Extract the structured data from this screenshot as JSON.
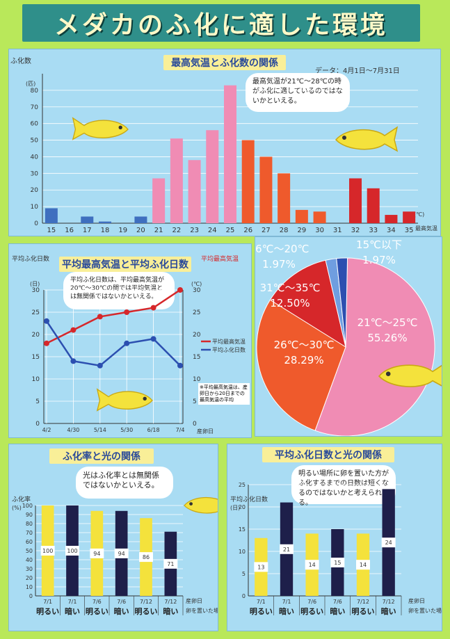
{
  "page_title": "メダカのふ化に適した環境",
  "colors": {
    "background": "#b9e85a",
    "panel": "#a9dcf3",
    "banner": "#2f8f8a",
    "pink": "#f08cb4",
    "red": "#d6272a",
    "orange": "#ef5a2c",
    "blue": "#3f6fbf",
    "yellow": "#f4e23c",
    "navy": "#1e1f4a"
  },
  "chart_data": [
    {
      "type": "bar",
      "title": "最高気温とふ化数の関係",
      "note": "データ：4月1日〜7月31日",
      "ylabel": "ふ化数",
      "yunit": "(匹)",
      "xunit": "(℃)",
      "xlabel": "最高気温",
      "ylim": [
        0,
        90
      ],
      "yticks": [
        0,
        10,
        20,
        30,
        40,
        50,
        60,
        70,
        80
      ],
      "categories": [
        "15",
        "16",
        "17",
        "18",
        "19",
        "20",
        "21",
        "22",
        "23",
        "24",
        "25",
        "26",
        "27",
        "28",
        "29",
        "30",
        "31",
        "32",
        "33",
        "34",
        "35"
      ],
      "values": [
        9,
        0,
        4,
        1,
        0,
        4,
        27,
        51,
        38,
        56,
        83,
        50,
        40,
        30,
        8,
        7,
        0,
        27,
        21,
        5,
        7
      ],
      "comment": "最高気温が21℃〜28℃の時がふ化に適しているのではないかといえる。"
    },
    {
      "type": "line",
      "title": "平均最高気温と平均ふ化日数",
      "ylabel_left": "平均ふ化日数",
      "yunit_left": "(日)",
      "ylabel_right": "平均最高気温",
      "yunit_right": "(℃)",
      "xlabel": "産卵日",
      "categories": [
        "4/2",
        "4/30",
        "5/14",
        "5/30",
        "6/18",
        "7/4"
      ],
      "left_ylim": [
        0,
        30
      ],
      "left_yticks": [
        0,
        5,
        10,
        15,
        20,
        25,
        30
      ],
      "right_ylim": [
        0,
        30
      ],
      "right_yticks": [
        0,
        5,
        10,
        15,
        20,
        25,
        30
      ],
      "series": [
        {
          "name": "平均最高気温",
          "color": "#d6272a",
          "values": [
            18,
            21,
            24,
            25,
            26,
            30
          ]
        },
        {
          "name": "平均ふ化日数",
          "color": "#2c4fb0",
          "values": [
            23,
            14,
            13,
            18,
            19,
            13
          ]
        }
      ],
      "comment": "平均ふ化日数は、平均最高気温が20℃〜30℃の間では平均気温とは無関係ではないかといえる。",
      "footnote": "※平均最高気温は、産卵日から20日までの最高気温の平均"
    },
    {
      "type": "pie",
      "slices": [
        {
          "label": "21℃〜25℃",
          "value": 55.26,
          "display": "55.26%",
          "color": "#f08cb4"
        },
        {
          "label": "26℃〜30℃",
          "value": 28.29,
          "display": "28.29%",
          "color": "#ef5a2c"
        },
        {
          "label": "31℃〜35℃",
          "value": 12.5,
          "display": "12.50%",
          "color": "#d6272a"
        },
        {
          "label": "16℃〜20℃",
          "value": 1.97,
          "display": "1.97%",
          "color": "#6f9ee0"
        },
        {
          "label": "15℃以下",
          "value": 1.97,
          "display": "1.97%",
          "color": "#2c4fb0"
        }
      ]
    },
    {
      "type": "bar",
      "title": "ふ化率と光の関係",
      "ylabel": "ふ化率",
      "yunit": "(%)",
      "ylim": [
        0,
        100
      ],
      "yticks": [
        0,
        10,
        20,
        30,
        40,
        50,
        60,
        70,
        80,
        90,
        100
      ],
      "xlabel": "産卵日",
      "xlabel2": "卵を置いた場所",
      "categories": [
        "7/1",
        "7/1",
        "7/6",
        "7/6",
        "7/12",
        "7/12"
      ],
      "places": [
        "明るい",
        "暗い",
        "明るい",
        "暗い",
        "明るい",
        "暗い"
      ],
      "values": [
        100,
        100,
        94,
        94,
        86,
        71
      ],
      "colors": [
        "#f4e23c",
        "#1e1f4a",
        "#f4e23c",
        "#1e1f4a",
        "#f4e23c",
        "#1e1f4a"
      ],
      "comment": "光はふ化率とは無関係ではないかといえる。"
    },
    {
      "type": "bar",
      "title": "平均ふ化日数と光の関係",
      "ylabel": "平均ふ化日数",
      "yunit": "(日)",
      "ylim": [
        0,
        25
      ],
      "yticks": [
        0,
        5,
        10,
        15,
        20,
        25
      ],
      "xlabel": "産卵日",
      "xlabel2": "卵を置いた場所",
      "categories": [
        "7/1",
        "7/1",
        "7/6",
        "7/6",
        "7/12",
        "7/12"
      ],
      "places": [
        "明るい",
        "暗い",
        "明るい",
        "暗い",
        "明るい",
        "暗い"
      ],
      "values": [
        13,
        21,
        14,
        15,
        14,
        24
      ],
      "colors": [
        "#f4e23c",
        "#1e1f4a",
        "#f4e23c",
        "#1e1f4a",
        "#f4e23c",
        "#1e1f4a"
      ],
      "comment": "明るい場所に卵を置いた方がふ化するまでの日数は短くなるのではないかと考えられる。"
    }
  ]
}
